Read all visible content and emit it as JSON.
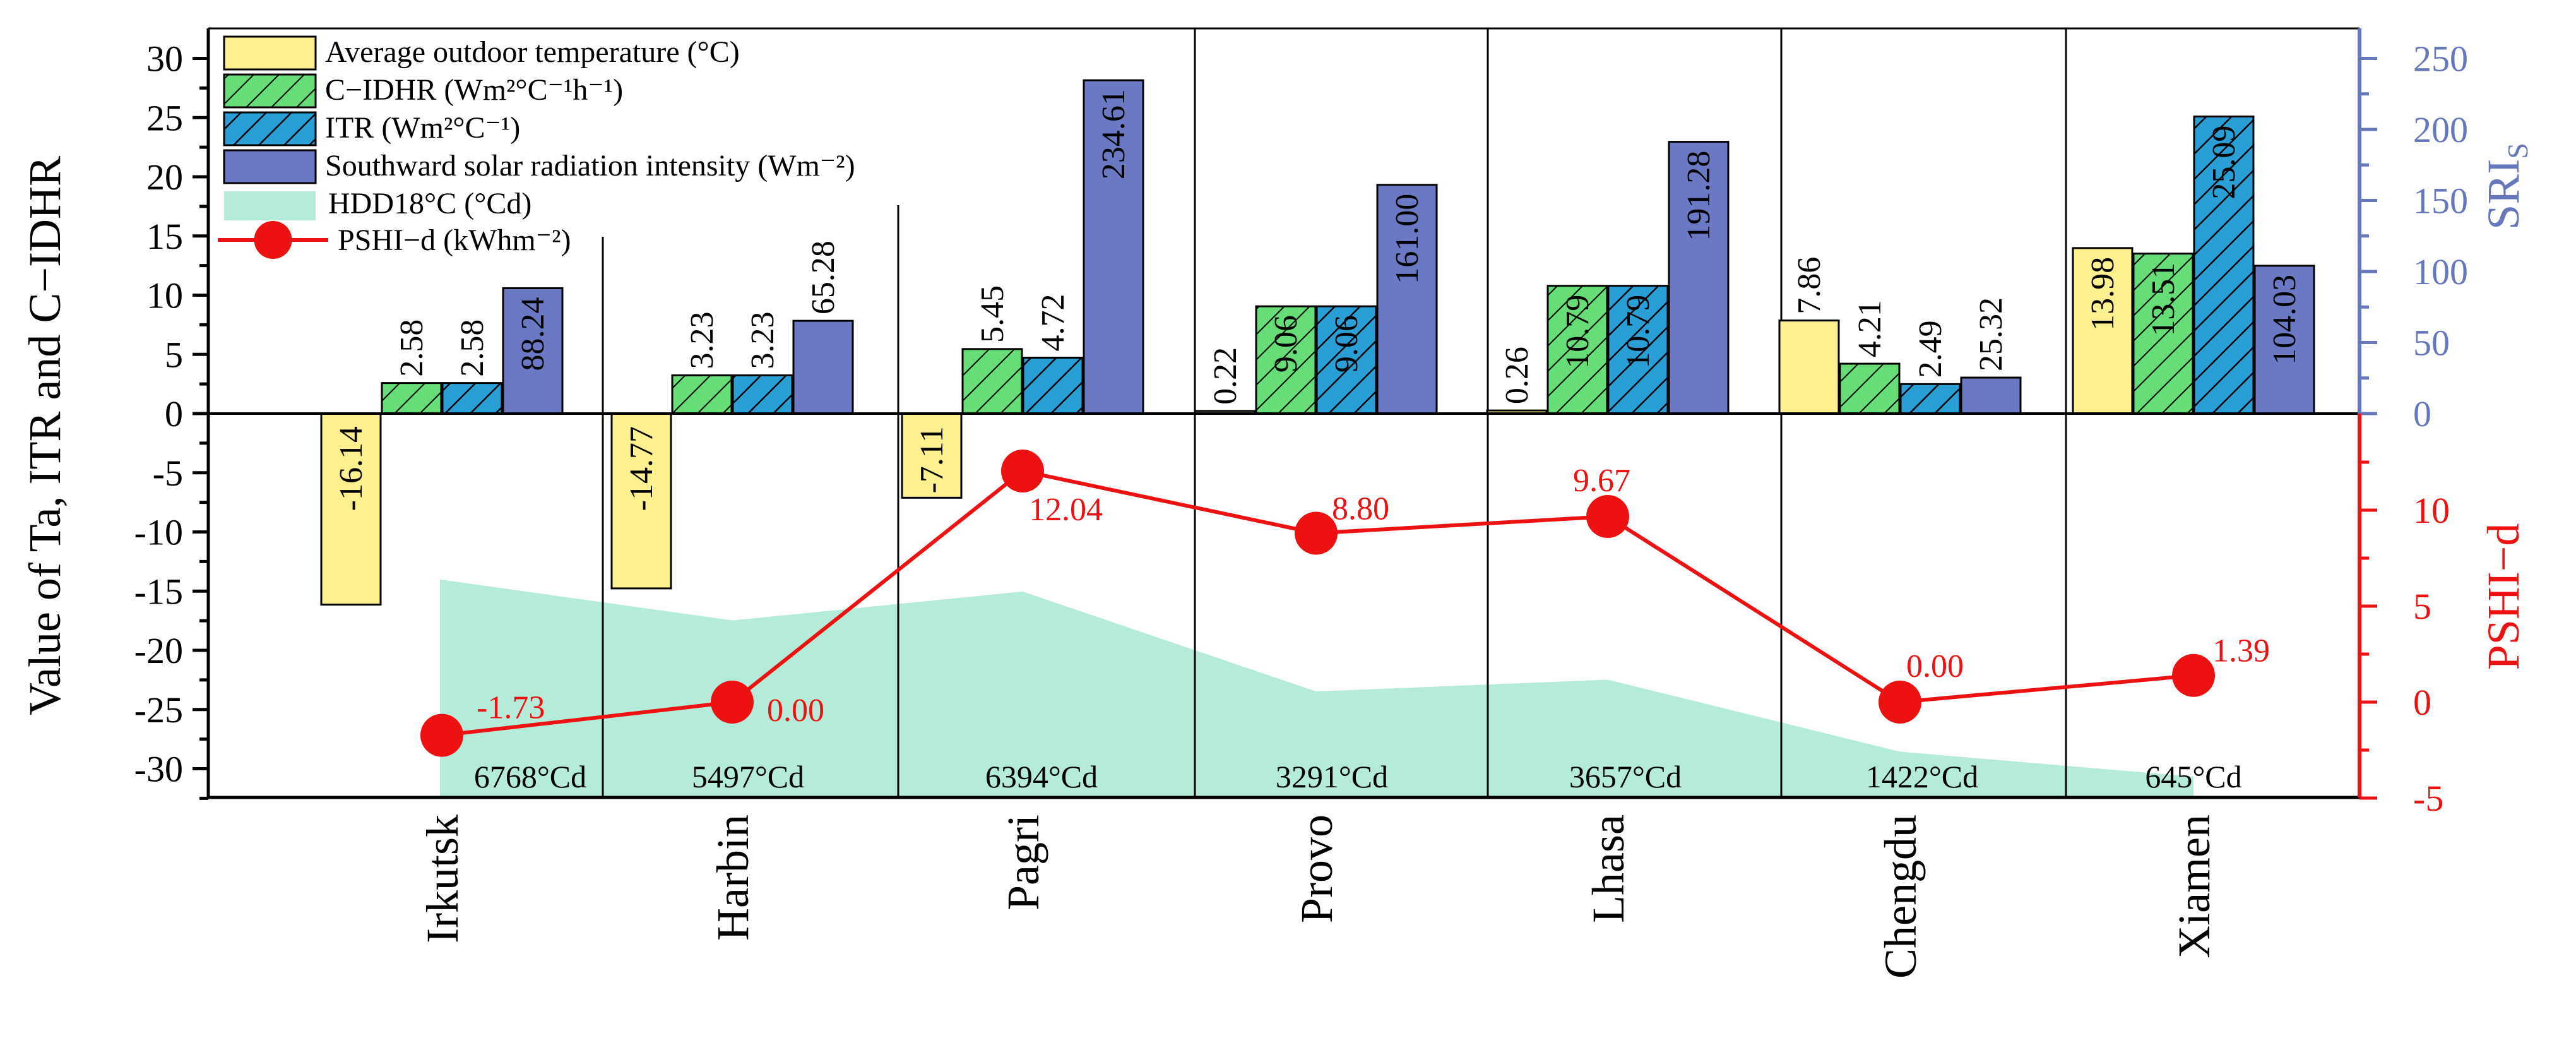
{
  "chart_data": {
    "type": "bar",
    "categories": [
      "Irkutsk",
      "Harbin",
      "Pagri",
      "Provo",
      "Lhasa",
      "Chengdu",
      "Xiamen"
    ],
    "left_axis": {
      "label": "Value of Ta, ITR and C−IDHR",
      "ylim": [
        -32.5,
        30
      ],
      "ticks": [
        "30",
        "25",
        "20",
        "15",
        "10",
        "5",
        "0",
        "-5",
        "-10",
        "-15",
        "-20",
        "-25",
        "-30"
      ]
    },
    "right_axis_top": {
      "label": "SRI",
      "label_sub": "S",
      "ticks": [
        "250",
        "200",
        "150",
        "100",
        "50",
        "0"
      ],
      "color": "#6677bb"
    },
    "right_axis_bottom": {
      "label": "PSHI−d",
      "ticks": [
        "10",
        "5",
        "0",
        "-5"
      ],
      "color": "#ee1111"
    },
    "series": [
      {
        "name": "Average outdoor temperature (°C)",
        "color": "#fdf08f",
        "values": [
          -16.14,
          -14.77,
          -7.11,
          0.22,
          0.26,
          7.86,
          13.98
        ],
        "labels": [
          "-16.14",
          "-14.77",
          "-7.11",
          "0.22",
          "0.26",
          "7.86",
          "13.98"
        ]
      },
      {
        "name": "C−IDHR (Wm²°C⁻¹h⁻¹)",
        "color": "#66dd77",
        "values": [
          2.58,
          3.23,
          5.45,
          9.06,
          10.79,
          4.21,
          13.51
        ],
        "labels": [
          "2.58",
          "3.23",
          "5.45",
          "9.06",
          "10.79",
          "4.21",
          "13.51"
        ]
      },
      {
        "name": "ITR (Wm²°C⁻¹)",
        "color": "#2a9fd6",
        "values": [
          2.58,
          3.23,
          4.72,
          9.06,
          10.79,
          2.49,
          25.09
        ],
        "labels": [
          "2.58",
          "3.23",
          "4.72",
          "9.06",
          "10.79",
          "2.49",
          "25.09"
        ]
      },
      {
        "name": "Southward solar radiation intensity (Wm⁻²)",
        "color": "#6b78c4",
        "values": [
          88.24,
          65.28,
          234.61,
          161.0,
          191.28,
          25.32,
          104.03
        ],
        "labels": [
          "88.24",
          "65.28",
          "234.61",
          "161.00",
          "191.28",
          "25.32",
          "104.03"
        ]
      }
    ],
    "hdd": {
      "name": "HDD18°C (°Cd)",
      "color": "#b5ecd9",
      "values": [
        6768,
        5497,
        6394,
        3291,
        3657,
        1422,
        645
      ],
      "labels": [
        "6768°Cd",
        "5497°Cd",
        "6394°Cd",
        "3291°Cd",
        "3657°Cd",
        "1422°Cd",
        "645°Cd"
      ]
    },
    "pshi": {
      "name": "PSHI−d (kWhm⁻²)",
      "color": "#ee1111",
      "values": [
        -1.73,
        0.0,
        12.04,
        8.8,
        9.67,
        0.0,
        1.39
      ],
      "labels": [
        "-1.73",
        "0.00",
        "12.04",
        "8.80",
        "9.67",
        "0.00",
        "1.39"
      ]
    },
    "legend": [
      {
        "text": "Average outdoor temperature (°C)"
      },
      {
        "text": "C−IDHR (Wm²°C⁻¹h⁻¹)"
      },
      {
        "text": "ITR (Wm²°C⁻¹)"
      },
      {
        "text": "Southward solar radiation intensity (Wm⁻²)"
      },
      {
        "text": "HDD18°C (°Cd)"
      },
      {
        "text": "PSHI−d (kWhm⁻²)"
      }
    ]
  }
}
